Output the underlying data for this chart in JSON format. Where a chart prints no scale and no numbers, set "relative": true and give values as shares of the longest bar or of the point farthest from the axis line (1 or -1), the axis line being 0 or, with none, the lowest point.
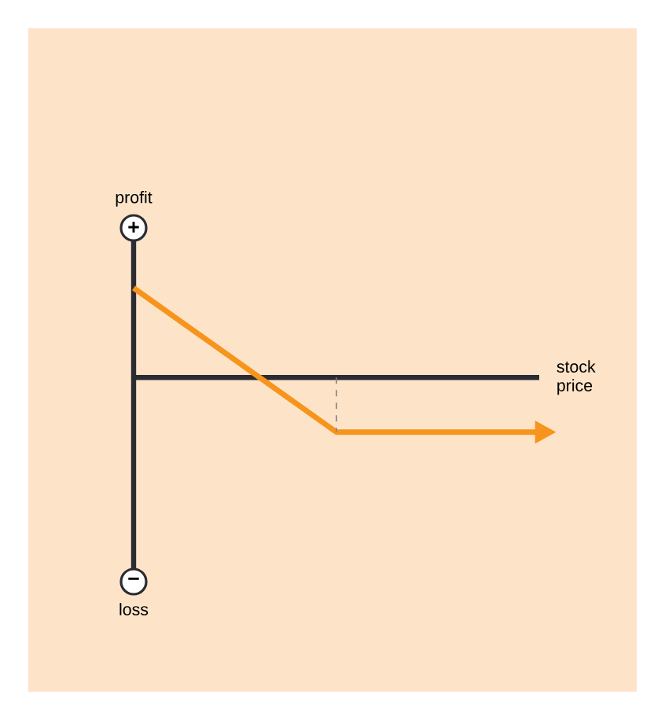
{
  "chart_data": {
    "type": "line",
    "relative": true,
    "xlabel": "stock price",
    "categories": [
      null,
      null,
      null
    ],
    "series": [
      {
        "color": "#f7941d",
        "values": [
          1,
          -0.61,
          -0.61
        ]
      }
    ],
    "annotations": [
      "profit",
      "+",
      "−",
      "loss"
    ]
  }
}
